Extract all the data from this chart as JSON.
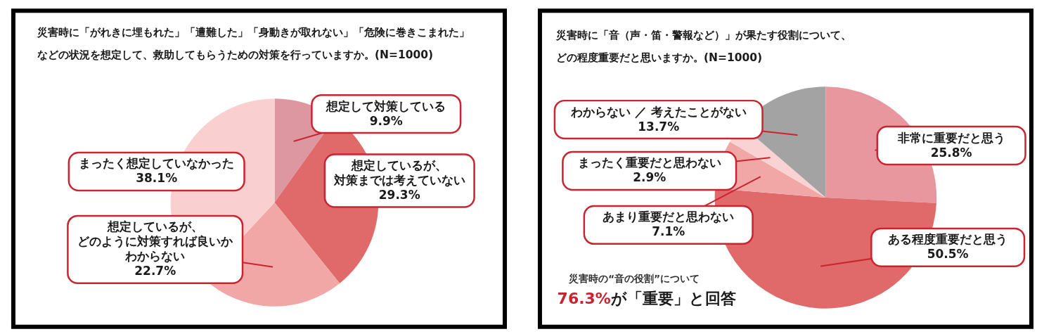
{
  "chart_data": [
    {
      "type": "pie",
      "title": "災害時に「がれきに埋もれた」「遭難した」「身動きが取れない」「危険に巻きこまれた」などの状況を想定して、救助してもらうための対策を行っていますか。(N=1000)",
      "categories": [
        "想定して対策している",
        "想定しているが、対策までは考えていない",
        "想定しているが、どのように対策すれば良いかわからない",
        "まったく想定していなかった"
      ],
      "values": [
        9.9,
        29.3,
        22.7,
        38.1
      ],
      "colors": [
        "#dd97a0",
        "#e06a6a",
        "#f2a7a7",
        "#f9cfd0"
      ],
      "value_labels": [
        "9.9%",
        "29.3%",
        "22.7%",
        "38.1%"
      ]
    },
    {
      "type": "pie",
      "title": "災害時に「音（声・笛・警報など）」が果たす役割について、どの程度重要だと思いますか。(N=1000)",
      "categories": [
        "非常に重要だと思う",
        "ある程度重要だと思う",
        "あまり重要だと思わない",
        "まったく重要だと思わない",
        "わからない ／ 考えたことがない"
      ],
      "values": [
        25.8,
        50.5,
        7.1,
        2.9,
        13.7
      ],
      "colors": [
        "#e8979f",
        "#e06a6a",
        "#f2a7a7",
        "#f9d3d4",
        "#a3a3a3"
      ],
      "value_labels": [
        "25.8%",
        "50.5%",
        "7.1%",
        "2.9%",
        "13.7%"
      ],
      "annotations": [
        "災害時の“音の役割”について",
        "76.3%",
        "が「重要」と回答"
      ]
    }
  ]
}
